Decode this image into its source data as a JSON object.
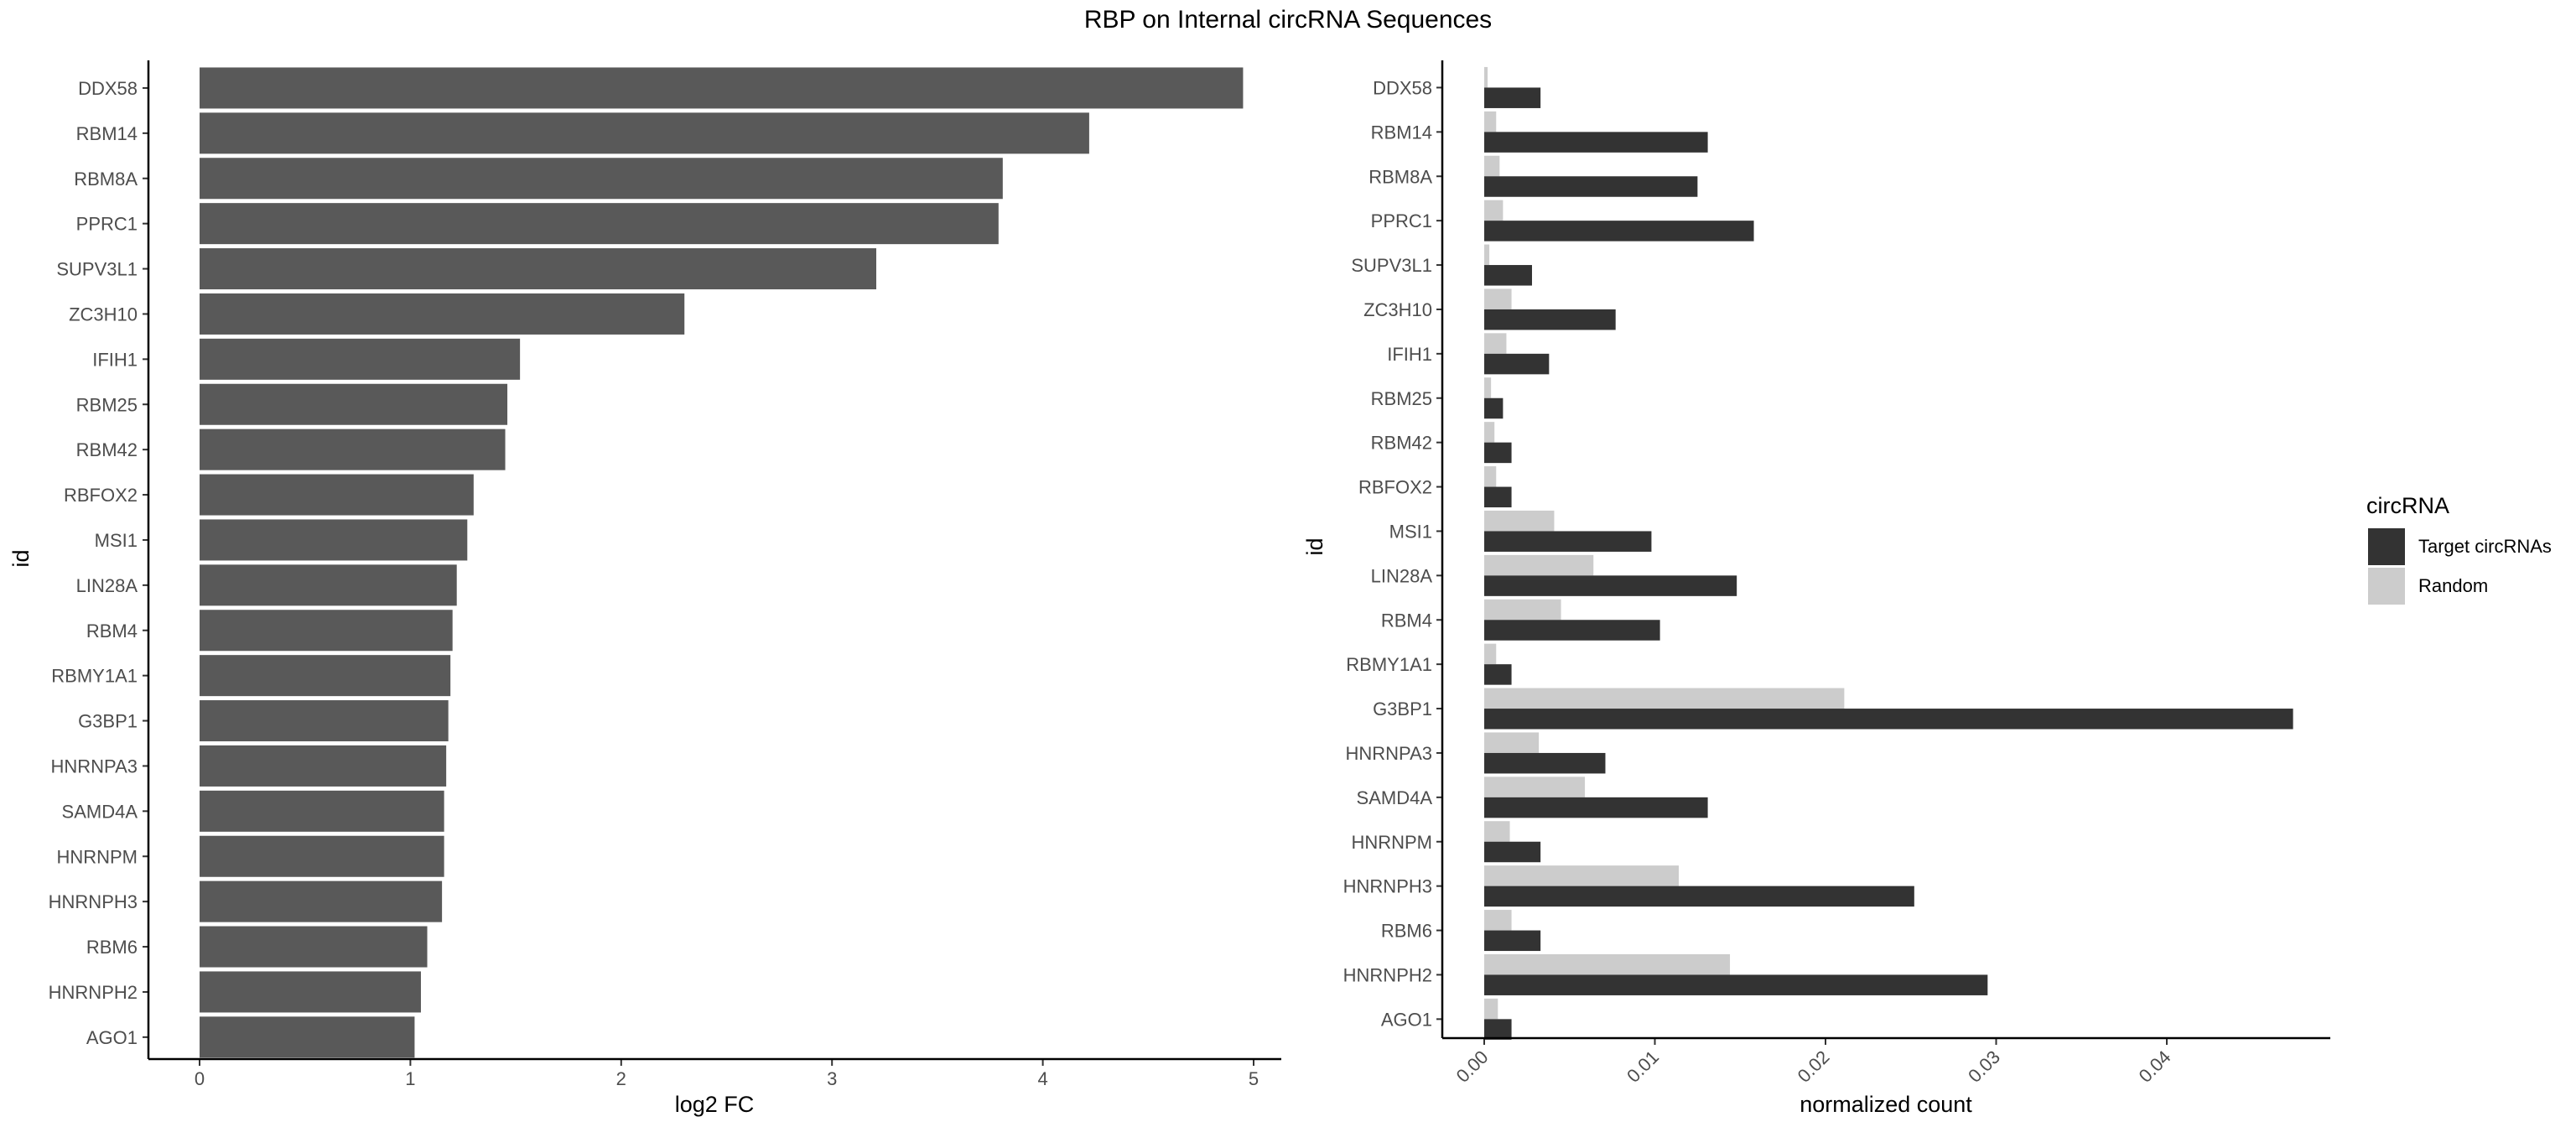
{
  "title": "RBP on Internal circRNA Sequences",
  "colors": {
    "bar": "#595959",
    "target": "#333333",
    "random": "#cccccc",
    "axis": "#000000",
    "tick_text": "#4d4d4d"
  },
  "legend": {
    "title": "circRNA",
    "items": [
      {
        "label": "Target circRNAs",
        "color": "#333333"
      },
      {
        "label": "Random",
        "color": "#cccccc"
      }
    ],
    "placement": "right"
  },
  "chart_data": [
    {
      "type": "bar",
      "orientation": "horizontal",
      "xlabel": "log2 FC",
      "ylabel": "id",
      "xlim": [
        0,
        5.2
      ],
      "xticks": [
        "0",
        "1",
        "2",
        "3",
        "4",
        "5"
      ],
      "grid": false,
      "categories": [
        "DDX58",
        "RBM14",
        "RBM8A",
        "PPRC1",
        "SUPV3L1",
        "ZC3H10",
        "IFIH1",
        "RBM25",
        "RBM42",
        "RBFOX2",
        "MSI1",
        "LIN28A",
        "RBM4",
        "RBMY1A1",
        "G3BP1",
        "HNRNPA3",
        "SAMD4A",
        "HNRNPM",
        "HNRNPH3",
        "RBM6",
        "HNRNPH2",
        "AGO1"
      ],
      "values": [
        4.95,
        4.22,
        3.81,
        3.79,
        3.21,
        2.3,
        1.52,
        1.46,
        1.45,
        1.3,
        1.27,
        1.22,
        1.2,
        1.19,
        1.18,
        1.17,
        1.16,
        1.16,
        1.15,
        1.08,
        1.05,
        1.02
      ]
    },
    {
      "type": "bar",
      "orientation": "horizontal",
      "xlabel": "normalized count",
      "ylabel": "id",
      "xlim": [
        -0.0025,
        0.049
      ],
      "xticks": [
        "0.00",
        "0.01",
        "0.02",
        "0.03",
        "0.04"
      ],
      "grid": false,
      "categories": [
        "DDX58",
        "RBM14",
        "RBM8A",
        "PPRC1",
        "SUPV3L1",
        "ZC3H10",
        "IFIH1",
        "RBM25",
        "RBM42",
        "RBFOX2",
        "MSI1",
        "LIN28A",
        "RBM4",
        "RBMY1A1",
        "G3BP1",
        "HNRNPA3",
        "SAMD4A",
        "HNRNPM",
        "HNRNPH3",
        "RBM6",
        "HNRNPH2",
        "AGO1"
      ],
      "series": [
        {
          "name": "Target circRNAs",
          "values": [
            0.0033,
            0.0131,
            0.0125,
            0.0158,
            0.0028,
            0.0077,
            0.0038,
            0.0011,
            0.0016,
            0.0016,
            0.0098,
            0.0148,
            0.0103,
            0.0016,
            0.0474,
            0.0071,
            0.0131,
            0.0033,
            0.0252,
            0.0033,
            0.0295,
            0.0016
          ]
        },
        {
          "name": "Random",
          "values": [
            0.0002,
            0.0007,
            0.0009,
            0.0011,
            0.0003,
            0.0016,
            0.0013,
            0.0004,
            0.0006,
            0.0007,
            0.0041,
            0.0064,
            0.0045,
            0.0007,
            0.0211,
            0.0032,
            0.0059,
            0.0015,
            0.0114,
            0.0016,
            0.0144,
            0.0008
          ]
        }
      ]
    }
  ]
}
